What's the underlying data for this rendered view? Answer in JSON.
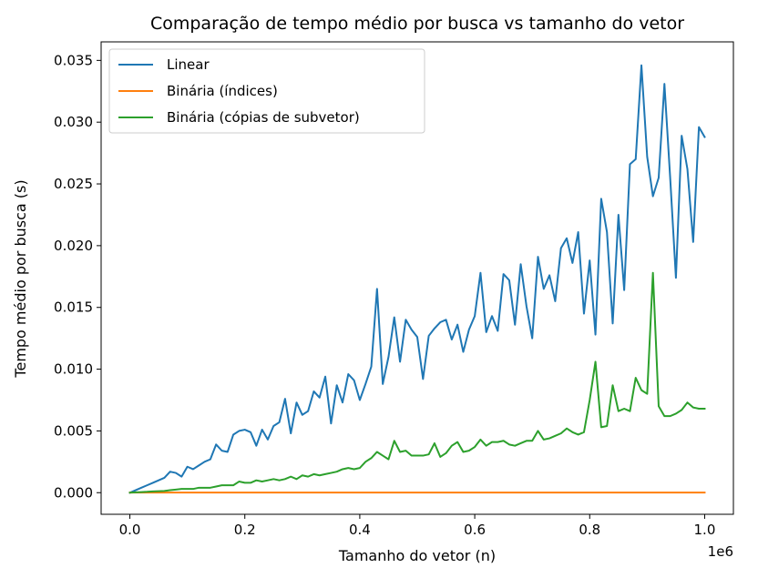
{
  "chart_data": {
    "type": "line",
    "title": "Comparação de tempo médio por busca vs tamanho do vetor",
    "xlabel": "Tamanho do vetor (n)",
    "ylabel": "Tempo médio por busca (s)",
    "x_offset_label": "1e6",
    "xlim": [
      -50000,
      1050000
    ],
    "ylim": [
      -0.00175,
      0.0365
    ],
    "x_ticks": [
      0,
      0.2,
      0.4,
      0.6,
      0.8,
      1.0
    ],
    "x_tick_labels": [
      "0.0",
      "0.2",
      "0.4",
      "0.6",
      "0.8",
      "1.0"
    ],
    "y_ticks": [
      0,
      0.005,
      0.01,
      0.015,
      0.02,
      0.025,
      0.03,
      0.035
    ],
    "y_tick_labels": [
      "0.000",
      "0.005",
      "0.010",
      "0.015",
      "0.020",
      "0.025",
      "0.030",
      "0.035"
    ],
    "legend_position": "upper-left",
    "grid": false,
    "x": [
      0,
      10000,
      20000,
      30000,
      40000,
      50000,
      60000,
      70000,
      80000,
      90000,
      100000,
      110000,
      120000,
      130000,
      140000,
      150000,
      160000,
      170000,
      180000,
      190000,
      200000,
      210000,
      220000,
      230000,
      240000,
      250000,
      260000,
      270000,
      280000,
      290000,
      300000,
      310000,
      320000,
      330000,
      340000,
      350000,
      360000,
      370000,
      380000,
      390000,
      400000,
      410000,
      420000,
      430000,
      440000,
      450000,
      460000,
      470000,
      480000,
      490000,
      500000,
      510000,
      520000,
      530000,
      540000,
      550000,
      560000,
      570000,
      580000,
      590000,
      600000,
      610000,
      620000,
      630000,
      640000,
      650000,
      660000,
      670000,
      680000,
      690000,
      700000,
      710000,
      720000,
      730000,
      740000,
      750000,
      760000,
      770000,
      780000,
      790000,
      800000,
      810000,
      820000,
      830000,
      840000,
      850000,
      860000,
      870000,
      880000,
      890000,
      900000,
      910000,
      920000,
      930000,
      940000,
      950000,
      960000,
      970000,
      980000,
      990000,
      1000000
    ],
    "series": [
      {
        "name": "Linear",
        "color": "#1f77b4",
        "values": [
          0.0,
          0.0002,
          0.0004,
          0.0006,
          0.0008,
          0.001,
          0.0012,
          0.0017,
          0.0016,
          0.0013,
          0.0021,
          0.0019,
          0.0022,
          0.0025,
          0.0027,
          0.0039,
          0.0034,
          0.0033,
          0.0047,
          0.005,
          0.0051,
          0.0049,
          0.0038,
          0.0051,
          0.0043,
          0.0054,
          0.0057,
          0.0076,
          0.0048,
          0.0073,
          0.0063,
          0.0066,
          0.0082,
          0.0077,
          0.0094,
          0.0056,
          0.0087,
          0.0073,
          0.0096,
          0.0091,
          0.0075,
          0.0088,
          0.0102,
          0.0165,
          0.0088,
          0.011,
          0.0142,
          0.0106,
          0.014,
          0.0132,
          0.0126,
          0.0092,
          0.0127,
          0.0133,
          0.0138,
          0.014,
          0.0124,
          0.0136,
          0.0114,
          0.0132,
          0.0143,
          0.0178,
          0.013,
          0.0143,
          0.0131,
          0.0177,
          0.0172,
          0.0136,
          0.0185,
          0.0151,
          0.0125,
          0.0191,
          0.0165,
          0.0176,
          0.0155,
          0.0198,
          0.0206,
          0.0186,
          0.0211,
          0.0145,
          0.0188,
          0.0128,
          0.0238,
          0.0211,
          0.0137,
          0.0225,
          0.0164,
          0.0266,
          0.027,
          0.0346,
          0.0272,
          0.024,
          0.0255,
          0.0331,
          0.0255,
          0.0174,
          0.0289,
          0.0262,
          0.0203,
          0.0296,
          0.0288
        ]
      },
      {
        "name": "Binária (índices)",
        "color": "#ff7f0e",
        "values": [
          1e-05,
          1e-05,
          1e-05,
          1e-05,
          1e-05,
          1e-05,
          1e-05,
          1e-05,
          1e-05,
          1e-05,
          1e-05,
          1e-05,
          1e-05,
          1e-05,
          1e-05,
          1e-05,
          1e-05,
          1e-05,
          1e-05,
          1e-05,
          1e-05,
          1e-05,
          1e-05,
          1e-05,
          1e-05,
          1e-05,
          1e-05,
          1e-05,
          1e-05,
          1e-05,
          1e-05,
          1e-05,
          1e-05,
          1e-05,
          1e-05,
          1e-05,
          1e-05,
          1e-05,
          1e-05,
          1e-05,
          1e-05,
          1e-05,
          1e-05,
          1e-05,
          1e-05,
          1e-05,
          1e-05,
          1e-05,
          1e-05,
          1e-05,
          1e-05,
          1e-05,
          1e-05,
          1e-05,
          1e-05,
          1e-05,
          1e-05,
          1e-05,
          1e-05,
          1e-05,
          1e-05,
          1e-05,
          1e-05,
          1e-05,
          1e-05,
          1e-05,
          1e-05,
          1e-05,
          1e-05,
          1e-05,
          1e-05,
          1e-05,
          1e-05,
          1e-05,
          1e-05,
          1e-05,
          1e-05,
          1e-05,
          1e-05,
          1e-05,
          1e-05,
          1e-05,
          1e-05,
          1e-05,
          1e-05,
          1e-05,
          1e-05,
          1e-05,
          1e-05,
          1e-05,
          1e-05,
          1e-05,
          1e-05,
          1e-05,
          1e-05,
          1e-05,
          1e-05,
          1e-05,
          1e-05,
          1e-05,
          1e-05
        ]
      },
      {
        "name": "Binária (cópias de subvetor)",
        "color": "#2ca02c",
        "values": [
          0.0,
          3e-05,
          5e-05,
          7e-05,
          0.0001,
          0.00012,
          0.00014,
          0.0002,
          0.00025,
          0.0003,
          0.0003,
          0.0003,
          0.0004,
          0.0004,
          0.0004,
          0.0005,
          0.0006,
          0.0006,
          0.0006,
          0.0009,
          0.0008,
          0.0008,
          0.001,
          0.0009,
          0.001,
          0.0011,
          0.001,
          0.0011,
          0.0013,
          0.0011,
          0.0014,
          0.0013,
          0.0015,
          0.0014,
          0.0015,
          0.0016,
          0.0017,
          0.0019,
          0.002,
          0.0019,
          0.002,
          0.0025,
          0.0028,
          0.0033,
          0.003,
          0.0027,
          0.0042,
          0.0033,
          0.0034,
          0.003,
          0.003,
          0.003,
          0.0031,
          0.004,
          0.0029,
          0.0032,
          0.0038,
          0.0041,
          0.0033,
          0.0034,
          0.0037,
          0.0043,
          0.0038,
          0.0041,
          0.0041,
          0.0042,
          0.0039,
          0.0038,
          0.004,
          0.0042,
          0.0042,
          0.005,
          0.0043,
          0.0044,
          0.0046,
          0.0048,
          0.0052,
          0.0049,
          0.0047,
          0.0049,
          0.0075,
          0.0106,
          0.0053,
          0.0054,
          0.0087,
          0.0066,
          0.0068,
          0.0066,
          0.0093,
          0.0083,
          0.008,
          0.0178,
          0.007,
          0.0062,
          0.0062,
          0.0064,
          0.0067,
          0.0073,
          0.0069,
          0.0068,
          0.0068
        ]
      }
    ]
  }
}
